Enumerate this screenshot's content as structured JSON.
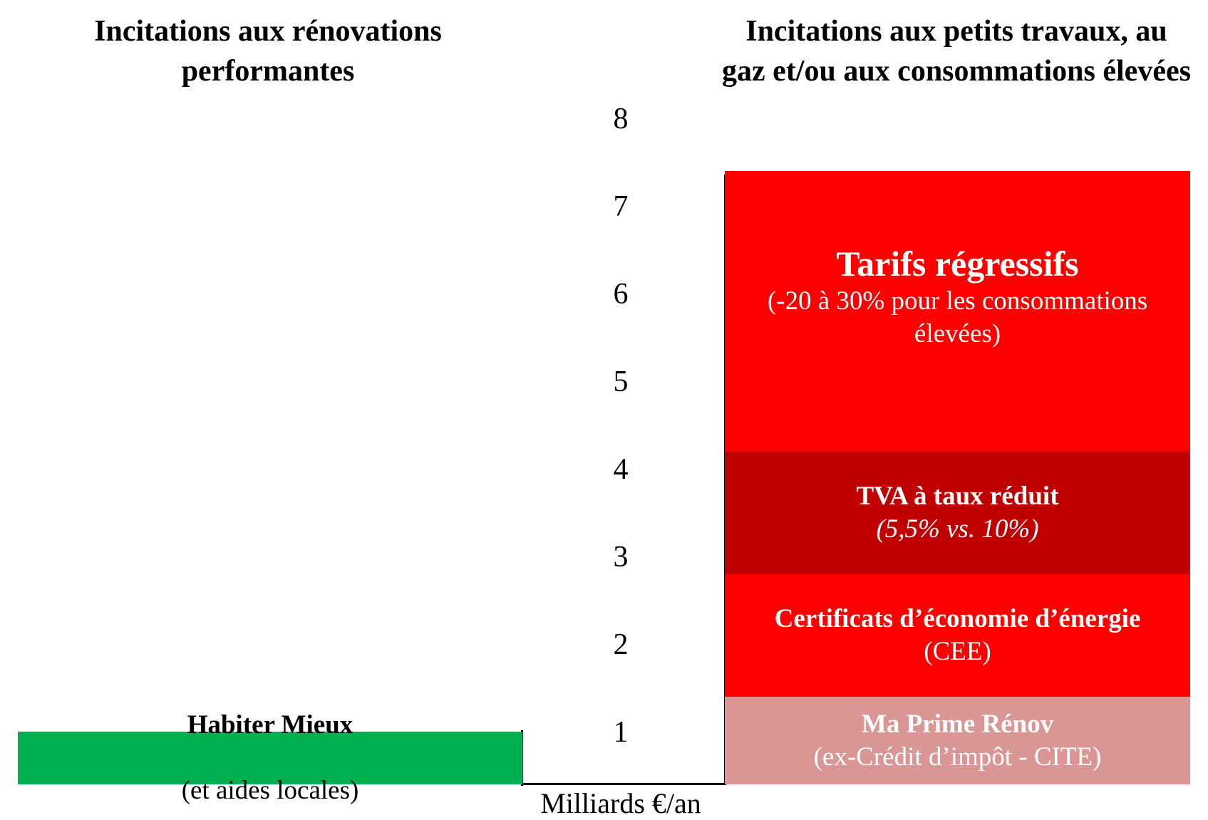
{
  "chart_data": {
    "type": "stacked_bar",
    "categories": [
      "Incitations aux rénovations performantes",
      "Incitations aux petits travaux, au gaz et/ou aux consommations élevées"
    ],
    "y_label": "Milliards €/an",
    "ylim": [
      0,
      8
    ],
    "yticks": [
      1,
      2,
      3,
      4,
      5,
      6,
      7,
      8
    ],
    "series": [
      {
        "name": "Habiter Mieux",
        "detail": "(et aides locales)",
        "color": "#00b050",
        "text_color": "#000000",
        "values": [
          0.6,
          null
        ]
      },
      {
        "name": "Ma Prime Rénov",
        "detail": "(ex-Crédit d’impôt - CITE)",
        "color": "#da9694",
        "text_color": "#ffffff",
        "values": [
          null,
          1
        ]
      },
      {
        "name": "Certificats d’économie d’énergie",
        "detail": "(CEE)",
        "color": "#ff0000",
        "text_color": "#ffffff",
        "values": [
          null,
          1.4
        ]
      },
      {
        "name": "TVA à taux réduit",
        "detail": "(5,5% vs. 10%)",
        "detail_italic": true,
        "color": "#c00000",
        "text_color": "#ffffff",
        "values": [
          null,
          1.4
        ]
      },
      {
        "name": "Tarifs régressifs",
        "detail": "(-20 à 30% pour les consommations élevées)",
        "color": "#ff0000",
        "text_color": "#ffffff",
        "values": [
          null,
          3.2
        ],
        "emphasis": true
      }
    ]
  }
}
